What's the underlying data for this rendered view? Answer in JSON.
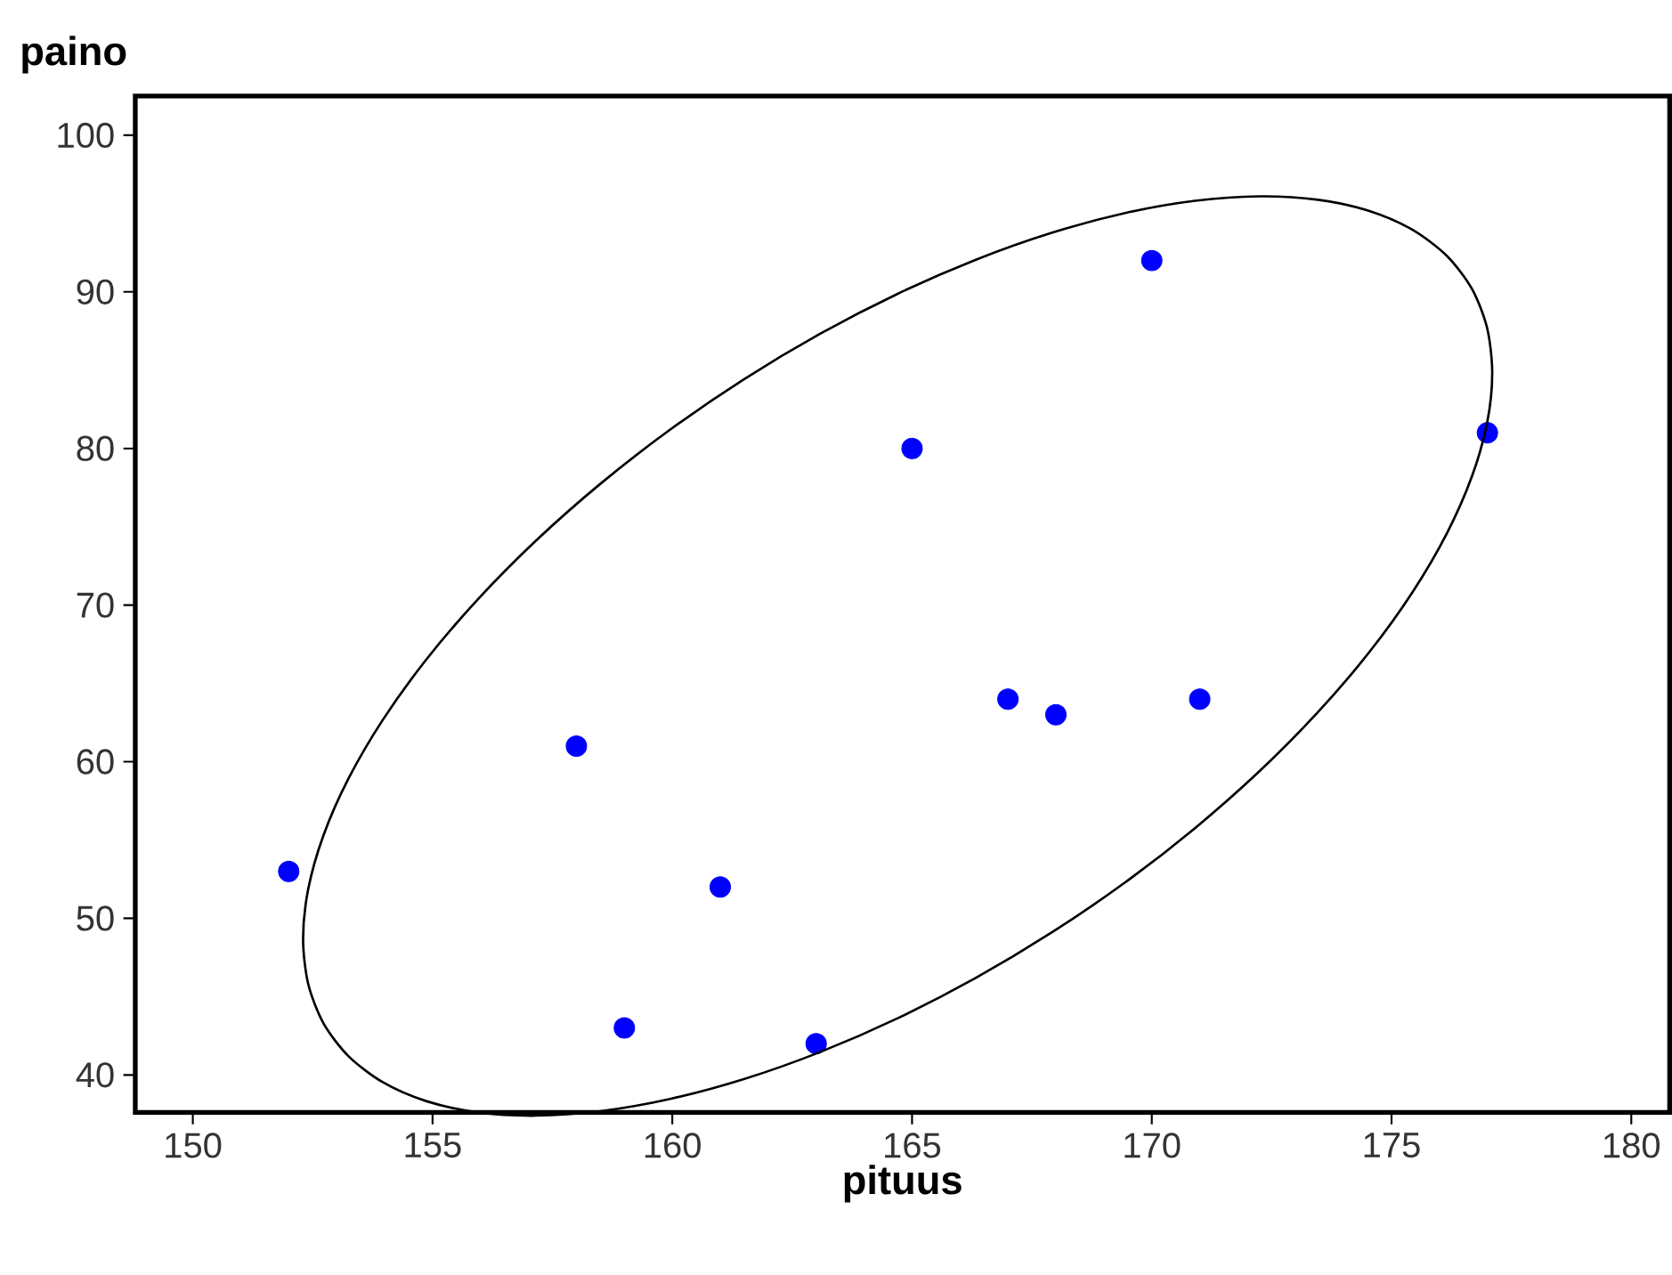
{
  "chart_data": {
    "type": "scatter",
    "xlabel": "pituus",
    "ylabel": "paino",
    "xlim": [
      148.8,
      180.8
    ],
    "ylim": [
      37.6,
      102.5
    ],
    "xticks": [
      150,
      155,
      160,
      165,
      170,
      175,
      180
    ],
    "yticks": [
      40,
      50,
      60,
      70,
      80,
      90,
      100
    ],
    "grid": false,
    "series": [
      {
        "marker": "circle",
        "color": "#0000ff",
        "x": [
          152,
          158,
          159,
          161,
          163,
          165,
          167,
          168,
          170,
          171,
          177
        ],
        "values": [
          53,
          61,
          43,
          52,
          42,
          80,
          64,
          63,
          92,
          64,
          81
        ]
      }
    ]
  }
}
